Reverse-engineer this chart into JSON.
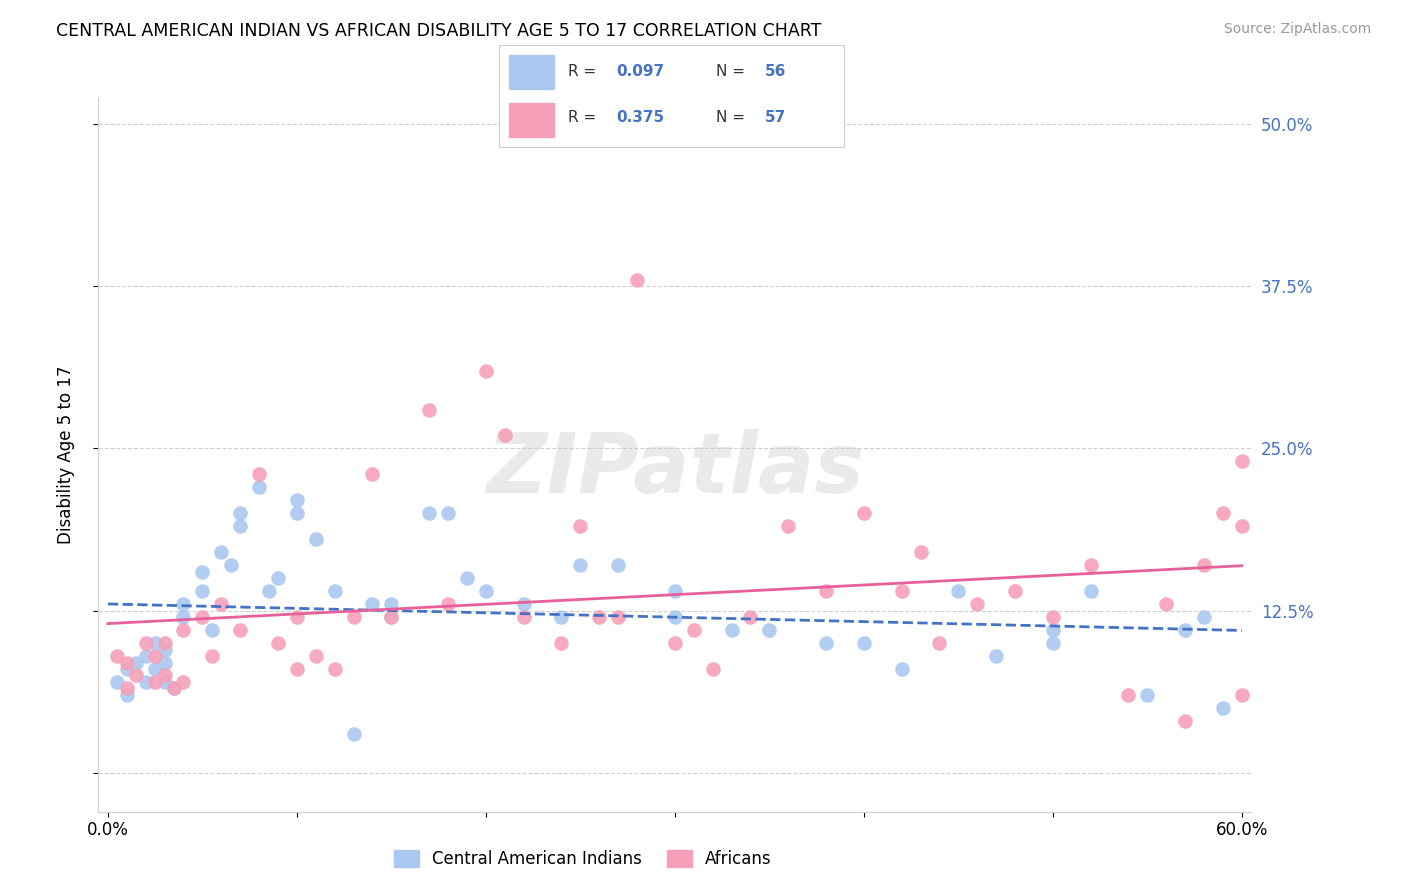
{
  "title": "CENTRAL AMERICAN INDIAN VS AFRICAN DISABILITY AGE 5 TO 17 CORRELATION CHART",
  "source": "Source: ZipAtlas.com",
  "ylabel": "Disability Age 5 to 17",
  "xmin": 0.0,
  "xmax": 0.6,
  "ymin": -0.03,
  "ymax": 0.52,
  "yticks": [
    0.0,
    0.125,
    0.25,
    0.375,
    0.5
  ],
  "ytick_labels": [
    "",
    "12.5%",
    "25.0%",
    "37.5%",
    "50.0%"
  ],
  "xtick_positions": [
    0.0,
    0.1,
    0.2,
    0.3,
    0.4,
    0.5,
    0.6
  ],
  "xtick_labels": [
    "0.0%",
    "",
    "",
    "",
    "",
    "",
    "60.0%"
  ],
  "legend_r1": "0.097",
  "legend_n1": "56",
  "legend_r2": "0.375",
  "legend_n2": "57",
  "legend_label1": "Central American Indians",
  "legend_label2": "Africans",
  "color_blue": "#aac8f0",
  "color_pink": "#f5a0b8",
  "line_color_blue": "#4472c4",
  "line_color_pink": "#e8609a",
  "watermark": "ZIPatlas",
  "blue_x": [
    0.005,
    0.01,
    0.01,
    0.015,
    0.02,
    0.02,
    0.025,
    0.025,
    0.03,
    0.03,
    0.03,
    0.035,
    0.04,
    0.04,
    0.05,
    0.05,
    0.055,
    0.06,
    0.065,
    0.07,
    0.07,
    0.08,
    0.085,
    0.09,
    0.1,
    0.1,
    0.11,
    0.12,
    0.13,
    0.14,
    0.15,
    0.15,
    0.17,
    0.18,
    0.19,
    0.2,
    0.22,
    0.24,
    0.25,
    0.27,
    0.3,
    0.3,
    0.33,
    0.35,
    0.38,
    0.4,
    0.42,
    0.45,
    0.47,
    0.5,
    0.5,
    0.52,
    0.55,
    0.57,
    0.58,
    0.59
  ],
  "blue_y": [
    0.07,
    0.08,
    0.06,
    0.085,
    0.09,
    0.07,
    0.1,
    0.08,
    0.095,
    0.085,
    0.07,
    0.065,
    0.13,
    0.12,
    0.155,
    0.14,
    0.11,
    0.17,
    0.16,
    0.2,
    0.19,
    0.22,
    0.14,
    0.15,
    0.21,
    0.2,
    0.18,
    0.14,
    0.03,
    0.13,
    0.13,
    0.12,
    0.2,
    0.2,
    0.15,
    0.14,
    0.13,
    0.12,
    0.16,
    0.16,
    0.14,
    0.12,
    0.11,
    0.11,
    0.1,
    0.1,
    0.08,
    0.14,
    0.09,
    0.11,
    0.1,
    0.14,
    0.06,
    0.11,
    0.12,
    0.05
  ],
  "pink_x": [
    0.005,
    0.01,
    0.01,
    0.015,
    0.02,
    0.025,
    0.025,
    0.03,
    0.03,
    0.035,
    0.04,
    0.04,
    0.05,
    0.055,
    0.06,
    0.07,
    0.08,
    0.09,
    0.1,
    0.1,
    0.11,
    0.12,
    0.13,
    0.14,
    0.15,
    0.17,
    0.18,
    0.2,
    0.21,
    0.22,
    0.24,
    0.25,
    0.26,
    0.27,
    0.28,
    0.3,
    0.31,
    0.32,
    0.34,
    0.36,
    0.38,
    0.4,
    0.42,
    0.43,
    0.44,
    0.46,
    0.48,
    0.5,
    0.52,
    0.54,
    0.56,
    0.57,
    0.58,
    0.59,
    0.6,
    0.6,
    0.6
  ],
  "pink_y": [
    0.09,
    0.085,
    0.065,
    0.075,
    0.1,
    0.09,
    0.07,
    0.1,
    0.075,
    0.065,
    0.11,
    0.07,
    0.12,
    0.09,
    0.13,
    0.11,
    0.23,
    0.1,
    0.12,
    0.08,
    0.09,
    0.08,
    0.12,
    0.23,
    0.12,
    0.28,
    0.13,
    0.31,
    0.26,
    0.12,
    0.1,
    0.19,
    0.12,
    0.12,
    0.38,
    0.1,
    0.11,
    0.08,
    0.12,
    0.19,
    0.14,
    0.2,
    0.14,
    0.17,
    0.1,
    0.13,
    0.14,
    0.12,
    0.16,
    0.06,
    0.13,
    0.04,
    0.16,
    0.2,
    0.19,
    0.24,
    0.06
  ]
}
